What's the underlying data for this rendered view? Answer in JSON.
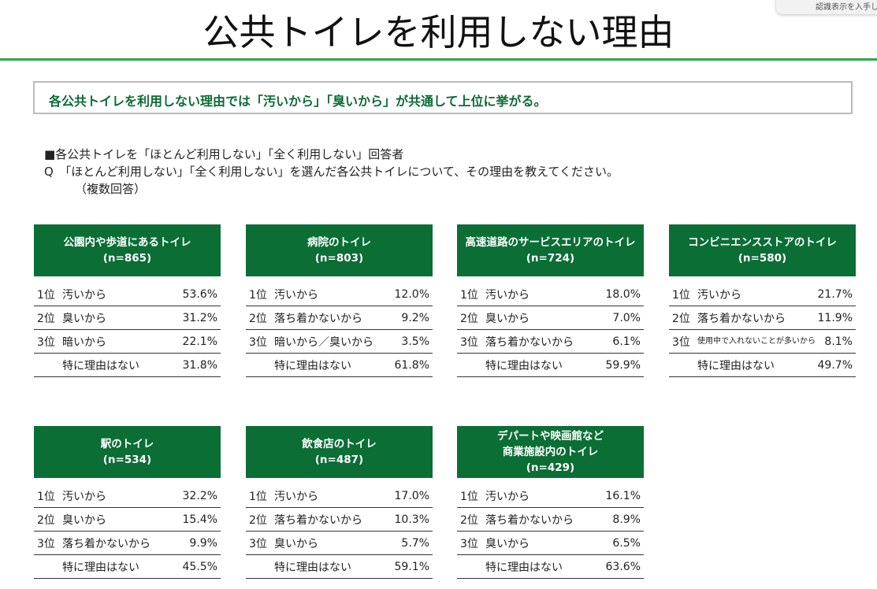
{
  "popup": "認識表示を入手し",
  "title": "公共トイレを利用しない理由",
  "summary": "各公共トイレを利用しない理由では「汚いから」「臭いから」が共通して上位に挙がる。",
  "question": {
    "target": "■各公共トイレを「ほとんど利用しない」「全く利用しない」回答者",
    "q": "Q　「ほとんど利用しない」「全く利用しない」を選んだ各公共トイレについて、その理由を教えてください。",
    "note": "（複数回答）"
  },
  "cards": [
    {
      "name": "公園内や歩道にあるトイレ",
      "n": "(n=865)",
      "rows": [
        [
          "1位",
          "汚いから",
          "53.6%"
        ],
        [
          "2位",
          "臭いから",
          "31.2%"
        ],
        [
          "3位",
          "暗いから",
          "22.1%"
        ],
        [
          "",
          "特に理由はない",
          "31.8%"
        ]
      ]
    },
    {
      "name": "病院のトイレ",
      "n": "(n=803)",
      "rows": [
        [
          "1位",
          "汚いから",
          "12.0%"
        ],
        [
          "2位",
          "落ち着かないから",
          "9.2%"
        ],
        [
          "3位",
          "暗いから／臭いから",
          "3.5%"
        ],
        [
          "",
          "特に理由はない",
          "61.8%"
        ]
      ]
    },
    {
      "name": "高速道路のサービスエリアのトイレ",
      "n": "(n=724)",
      "rows": [
        [
          "1位",
          "汚いから",
          "18.0%"
        ],
        [
          "2位",
          "臭いから",
          "7.0%"
        ],
        [
          "3位",
          "落ち着かないから",
          "6.1%"
        ],
        [
          "",
          "特に理由はない",
          "59.9%"
        ]
      ]
    },
    {
      "name": "コンビニエンスストアのトイレ",
      "n": "(n=580)",
      "rows": [
        [
          "1位",
          "汚いから",
          "21.7%"
        ],
        [
          "2位",
          "落ち着かないから",
          "11.9%"
        ],
        [
          "3位",
          "使用中で入れないことが多いから",
          "8.1%"
        ],
        [
          "",
          "特に理由はない",
          "49.7%"
        ]
      ]
    },
    {
      "name": "駅のトイレ",
      "n": "(n=534)",
      "rows": [
        [
          "1位",
          "汚いから",
          "32.2%"
        ],
        [
          "2位",
          "臭いから",
          "15.4%"
        ],
        [
          "3位",
          "落ち着かないから",
          "9.9%"
        ],
        [
          "",
          "特に理由はない",
          "45.5%"
        ]
      ]
    },
    {
      "name": "飲食店のトイレ",
      "n": "(n=487)",
      "rows": [
        [
          "1位",
          "汚いから",
          "17.0%"
        ],
        [
          "2位",
          "落ち着かないから",
          "10.3%"
        ],
        [
          "3位",
          "臭いから",
          "5.7%"
        ],
        [
          "",
          "特に理由はない",
          "59.1%"
        ]
      ]
    },
    {
      "name": "デパートや映画館など商業施設内のトイレ",
      "name_lines": [
        "デパートや映画館など",
        "商業施設内のトイレ"
      ],
      "n": "(n=429)",
      "rows": [
        [
          "1位",
          "汚いから",
          "16.1%"
        ],
        [
          "2位",
          "落ち着かないから",
          "8.9%"
        ],
        [
          "3位",
          "臭いから",
          "6.5%"
        ],
        [
          "",
          "特に理由はない",
          "63.6%"
        ]
      ]
    }
  ]
}
